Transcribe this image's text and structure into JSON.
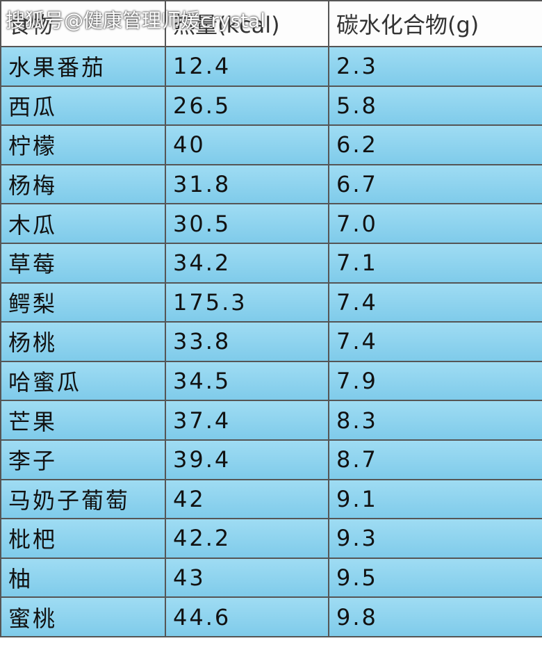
{
  "watermark": "搜狐号@健康管理师媛crystal",
  "table": {
    "header": [
      "食物",
      "热量(kcal)",
      "碳水化合物(g)"
    ],
    "rows": [
      [
        "水果番茄",
        "12.4",
        "2.3"
      ],
      [
        "西瓜",
        "26.5",
        "5.8"
      ],
      [
        "柠檬",
        "40",
        "6.2"
      ],
      [
        "杨梅",
        "31.8",
        "6.7"
      ],
      [
        "木瓜",
        "30.5",
        "7.0"
      ],
      [
        "草莓",
        "34.2",
        "7.1"
      ],
      [
        "鳄梨",
        "175.3",
        "7.4"
      ],
      [
        "杨桃",
        "33.8",
        "7.4"
      ],
      [
        "哈蜜瓜",
        "34.5",
        "7.9"
      ],
      [
        "芒果",
        "37.4",
        "8.3"
      ],
      [
        "李子",
        "39.4",
        "8.7"
      ],
      [
        "马奶子葡萄",
        "42",
        "9.1"
      ],
      [
        "枇杷",
        "42.2",
        "9.3"
      ],
      [
        "柚",
        "43",
        "9.5"
      ],
      [
        "蜜桃",
        "44.6",
        "9.8"
      ]
    ]
  }
}
